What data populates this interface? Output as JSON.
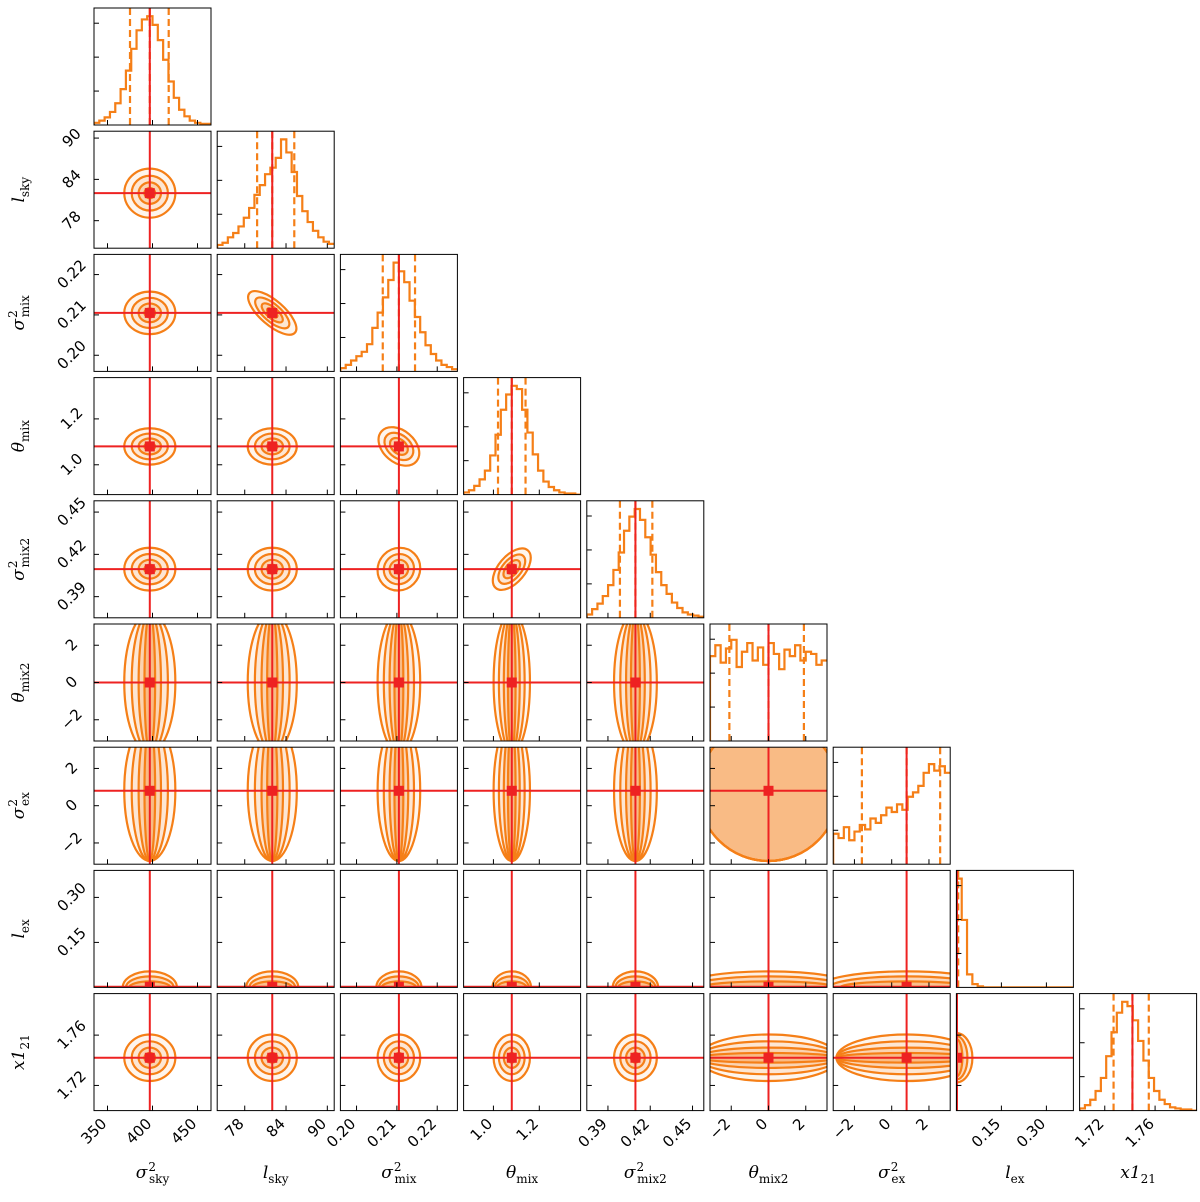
{
  "chart_data": {
    "type": "corner",
    "colors": {
      "posterior": "#f57f17",
      "truth": "#ee2222"
    },
    "parameters": [
      {
        "key": "sigma2_sky",
        "label": {
          "base": "σ",
          "sup": "2",
          "sub": "sky"
        },
        "range": [
          335,
          465
        ],
        "ticks": [
          350,
          400,
          450
        ],
        "tick_labels": [
          "350",
          "400",
          "450"
        ],
        "truth": 397,
        "quantiles": [
          375,
          397,
          418
        ]
      },
      {
        "key": "l_sky",
        "label": {
          "base": "l",
          "sup": "",
          "sub": "sky"
        },
        "range": [
          74,
          91
        ],
        "ticks": [
          78,
          84,
          90
        ],
        "tick_labels": [
          "78",
          "84",
          "90"
        ],
        "truth": 82,
        "quantiles": [
          79.8,
          82,
          85.2
        ]
      },
      {
        "key": "sigma2_mix",
        "label": {
          "base": "σ",
          "sup": "2",
          "sub": "mix"
        },
        "range": [
          0.196,
          0.225
        ],
        "ticks": [
          0.2,
          0.21,
          0.22
        ],
        "tick_labels": [
          "0.20",
          "0.21",
          "0.22"
        ],
        "truth": 0.2105,
        "quantiles": [
          0.2065,
          0.2105,
          0.2145
        ]
      },
      {
        "key": "theta_mix",
        "label": {
          "base": "θ",
          "sup": "",
          "sub": "mix"
        },
        "range": [
          0.87,
          1.38
        ],
        "ticks": [
          1.0,
          1.2
        ],
        "tick_labels": [
          "1.0",
          "1.2"
        ],
        "truth": 1.08,
        "quantiles": [
          1.02,
          1.08,
          1.14
        ]
      },
      {
        "key": "sigma2_mix2",
        "label": {
          "base": "σ",
          "sup": "2",
          "sub": "mix2"
        },
        "range": [
          0.375,
          0.458
        ],
        "ticks": [
          0.39,
          0.42,
          0.45
        ],
        "tick_labels": [
          "0.39",
          "0.42",
          "0.45"
        ],
        "truth": 0.4095,
        "quantiles": [
          0.3985,
          0.4095,
          0.4215
        ]
      },
      {
        "key": "theta_mix2",
        "label": {
          "base": "θ",
          "sup": "",
          "sub": "mix2"
        },
        "range": [
          -3.14,
          3.14
        ],
        "ticks": [
          -2,
          0,
          2
        ],
        "tick_labels": [
          "−2",
          "0",
          "2"
        ],
        "truth": 0.0,
        "quantiles": [
          -2.1,
          0.0,
          1.9
        ]
      },
      {
        "key": "sigma2_ex",
        "label": {
          "base": "σ",
          "sup": "2",
          "sub": "ex"
        },
        "range": [
          -3.14,
          3.14
        ],
        "ticks": [
          -2,
          0,
          2
        ],
        "tick_labels": [
          "−2",
          "0",
          "2"
        ],
        "truth": 0.8,
        "quantiles": [
          -1.6,
          0.8,
          2.6
        ]
      },
      {
        "key": "l_ex",
        "label": {
          "base": "l",
          "sup": "",
          "sub": "ex"
        },
        "range": [
          0.0,
          0.39
        ],
        "ticks": [
          0.15,
          0.3
        ],
        "tick_labels": [
          "0.15",
          "0.30"
        ],
        "truth": 0.002,
        "quantiles": [
          0.0,
          0.002,
          0.006
        ]
      },
      {
        "key": "x1_21",
        "label": {
          "base": "x1",
          "sup": "",
          "sub": "21"
        },
        "range": [
          1.7,
          1.793
        ],
        "ticks": [
          1.72,
          1.76
        ],
        "tick_labels": [
          "1.72",
          "1.76"
        ],
        "truth": 1.742,
        "quantiles": [
          1.727,
          1.742,
          1.755
        ]
      }
    ],
    "histograms": [
      [
        0.02,
        0.04,
        0.07,
        0.12,
        0.2,
        0.33,
        0.5,
        0.7,
        0.87,
        0.97,
        1.0,
        0.92,
        0.78,
        0.6,
        0.4,
        0.25,
        0.14,
        0.08,
        0.04,
        0.02,
        0.01,
        0.01
      ],
      [
        0.03,
        0.05,
        0.1,
        0.14,
        0.2,
        0.28,
        0.37,
        0.49,
        0.58,
        0.68,
        0.74,
        0.83,
        1.0,
        0.88,
        0.7,
        0.48,
        0.34,
        0.24,
        0.16,
        0.1,
        0.06,
        0.04
      ],
      [
        0.03,
        0.06,
        0.1,
        0.14,
        0.18,
        0.25,
        0.4,
        0.54,
        0.68,
        0.84,
        1.0,
        0.92,
        0.82,
        0.65,
        0.5,
        0.36,
        0.24,
        0.16,
        0.1,
        0.06,
        0.04,
        0.02
      ],
      [
        0.02,
        0.04,
        0.08,
        0.14,
        0.22,
        0.36,
        0.55,
        0.78,
        0.92,
        1.0,
        0.97,
        0.78,
        0.57,
        0.37,
        0.22,
        0.12,
        0.07,
        0.04,
        0.02,
        0.01,
        0.01,
        0.0
      ],
      [
        0.03,
        0.08,
        0.13,
        0.2,
        0.3,
        0.44,
        0.6,
        0.8,
        0.93,
        1.0,
        0.9,
        0.74,
        0.58,
        0.42,
        0.3,
        0.22,
        0.14,
        0.09,
        0.05,
        0.03,
        0.02,
        0.01
      ],
      [
        0.78,
        0.88,
        0.72,
        0.85,
        0.93,
        0.68,
        0.82,
        0.9,
        0.74,
        0.86,
        0.7,
        0.9,
        0.8,
        0.66,
        0.84,
        0.78,
        0.88,
        0.74,
        0.82,
        0.8,
        0.7,
        0.74
      ],
      [
        0.28,
        0.24,
        0.34,
        0.22,
        0.3,
        0.36,
        0.32,
        0.42,
        0.38,
        0.45,
        0.52,
        0.48,
        0.55,
        0.5,
        0.62,
        0.66,
        0.72,
        0.84,
        0.92,
        0.86,
        0.9,
        0.84
      ],
      [
        1.0,
        0.62,
        0.12,
        0.03,
        0.01,
        0.0,
        0.0,
        0.0,
        0.0,
        0.0,
        0.0,
        0.0,
        0.0,
        0.0,
        0.0,
        0.0,
        0.0,
        0.0,
        0.0,
        0.0,
        0.0,
        0.0
      ],
      [
        0.02,
        0.05,
        0.1,
        0.18,
        0.3,
        0.5,
        0.72,
        0.9,
        1.0,
        0.96,
        0.83,
        0.64,
        0.46,
        0.3,
        0.18,
        0.1,
        0.06,
        0.03,
        0.02,
        0.01,
        0.01,
        0.0
      ]
    ]
  }
}
